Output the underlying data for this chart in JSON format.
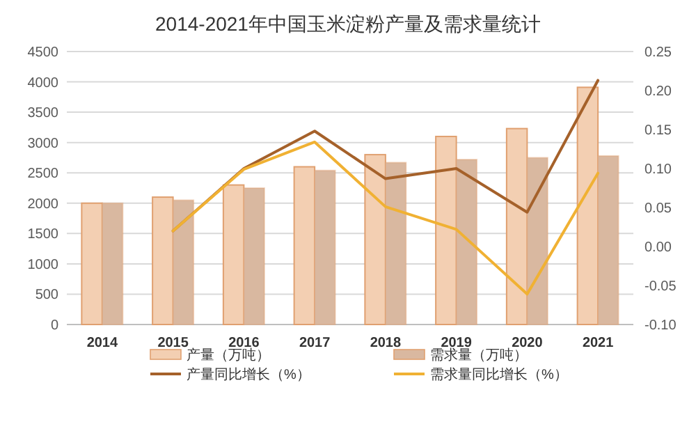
{
  "chart_data": {
    "type": "bar",
    "title": "2014-2021年中国玉米淀粉产量及需求量统计",
    "categories": [
      "2014",
      "2015",
      "2016",
      "2017",
      "2018",
      "2019",
      "2020",
      "2021"
    ],
    "series": [
      {
        "name": "产量（万吨）",
        "color": "#f3cfb2",
        "values": [
          2000,
          2100,
          2300,
          2600,
          2800,
          3100,
          3230,
          3910
        ]
      },
      {
        "name": "需求量（万吨）",
        "color": "#d9b8a0",
        "values": [
          2000,
          2050,
          2250,
          2540,
          2670,
          2720,
          2750,
          2780
        ]
      },
      {
        "name": "产量同比增长（%）",
        "type": "line",
        "axis": "y2",
        "color": "#a5612a",
        "values": [
          null,
          0.02,
          0.1,
          0.148,
          0.087,
          0.1,
          0.044,
          0.213
        ]
      },
      {
        "name": "需求量同比增长（%）",
        "type": "line",
        "axis": "y2",
        "color": "#f0b133",
        "values": [
          null,
          0.02,
          0.099,
          0.134,
          0.051,
          0.022,
          -0.061,
          0.094
        ]
      }
    ],
    "ylim": [
      0,
      4500
    ],
    "yticks": [
      0,
      500,
      1000,
      1500,
      2000,
      2500,
      3000,
      3500,
      4000,
      4500
    ],
    "y2lim": [
      -0.1,
      0.25
    ],
    "y2ticks": [
      {
        "value": -0.1,
        "label": "-0.10"
      },
      {
        "value": -0.05,
        "label": "-0.05"
      },
      {
        "value": 0,
        "label": "0.00"
      },
      {
        "value": 0.05,
        "label": "0.05"
      },
      {
        "value": 0.1,
        "label": "0.10"
      },
      {
        "value": 0.15,
        "label": "0.15"
      },
      {
        "value": 0.2,
        "label": "0.20"
      },
      {
        "value": 0.25,
        "label": "0.25"
      }
    ],
    "grid": "y",
    "legend": "bottom"
  }
}
